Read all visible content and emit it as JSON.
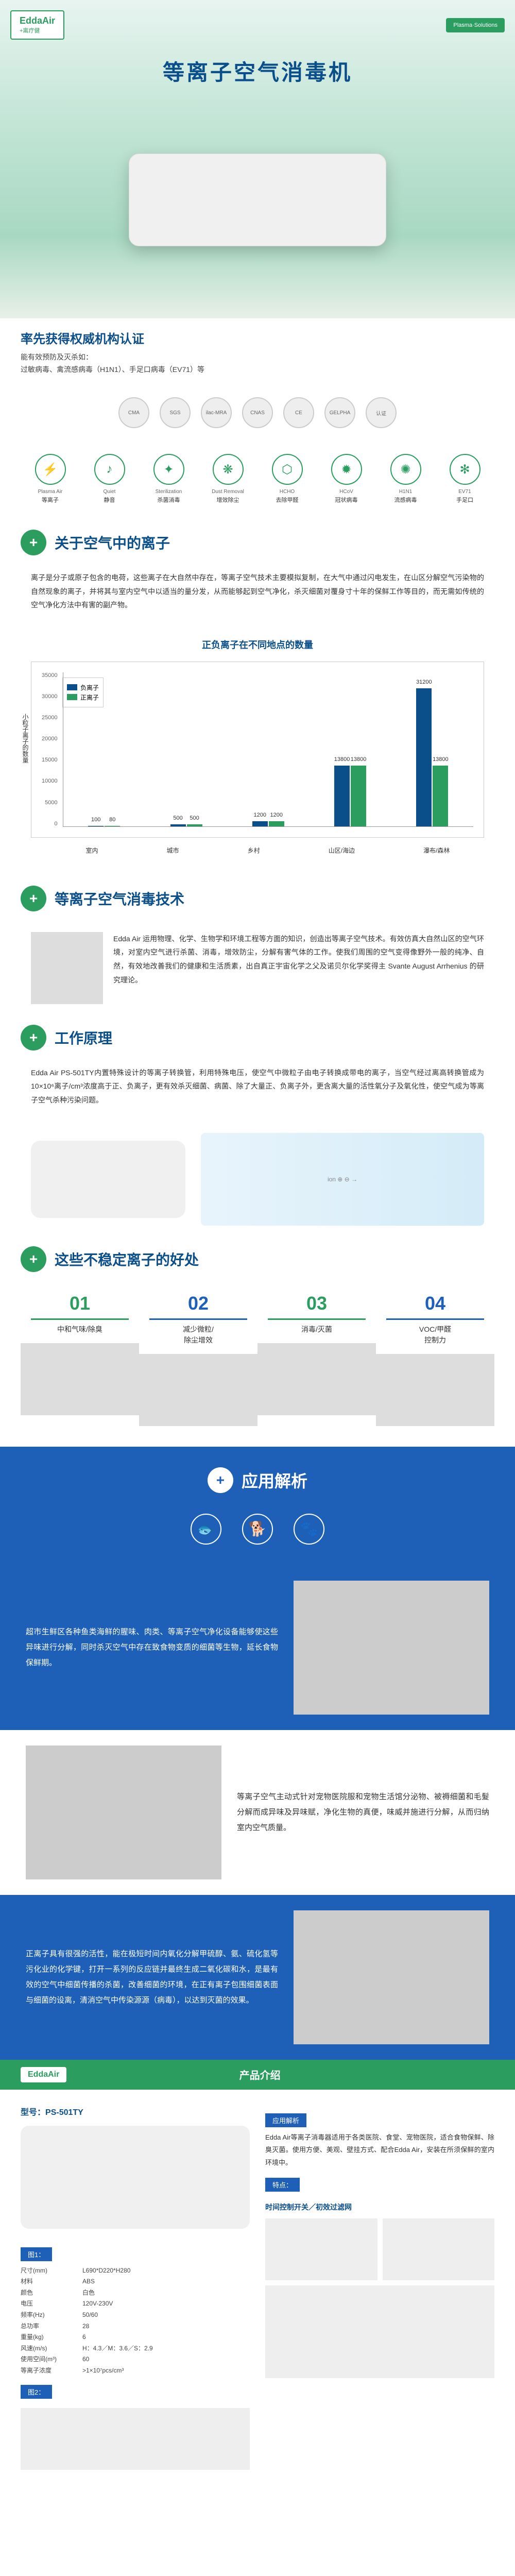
{
  "header": {
    "logo_main": "EddaAir",
    "logo_sub": "+离疗健",
    "cert_badge": "Plasma·Solutions"
  },
  "main_title": "等离子空气消毒机",
  "cert": {
    "title": "率先获得权威机构认证",
    "line1": "能有效预防及灭杀如：",
    "line2": "过敏病毒、禽流感病毒（H1N1）、手足口病毒（EV71）等"
  },
  "badges": [
    "CMA",
    "SGS",
    "ilac-MRA",
    "CNAS",
    "CE",
    "GELPHA",
    "认证"
  ],
  "features": [
    {
      "en": "Plasma Air",
      "cn": "等离子",
      "icon": "⚡"
    },
    {
      "en": "Quiet",
      "cn": "静音",
      "icon": "♪"
    },
    {
      "en": "Sterilization",
      "cn": "杀菌消毒",
      "icon": "✦"
    },
    {
      "en": "Dust Removal",
      "cn": "增效除尘",
      "icon": "❋"
    },
    {
      "en": "HCHO",
      "cn": "去除甲醛",
      "icon": "⬡"
    },
    {
      "en": "HCoV",
      "cn": "冠状病毒",
      "icon": "✹"
    },
    {
      "en": "H1N1",
      "cn": "流感病毒",
      "icon": "✺"
    },
    {
      "en": "EV71",
      "cn": "手足口",
      "icon": "✻"
    }
  ],
  "section1": {
    "title": "关于空气中的离子",
    "text": "离子是分子或原子包含的电荷，这些离子在大自然中存在，等离子空气技术主要模拟复制，在大气中通过闪电发生，在山区分解空气污染物的自然现象的离子，并将其与室内空气中以适当的量分发，从而能够起到空气净化，杀灭细菌对覆身寸十年的保鲜工作等目的，而无需如传统的空气净化方法中有害的副产物。"
  },
  "chart": {
    "title": "正负离子在不同地点的数量",
    "ylabel": "小粒子离子的数量",
    "ylim": [
      0,
      35000
    ],
    "yticks": [
      0,
      5000,
      10000,
      15000,
      20000,
      25000,
      30000,
      35000
    ],
    "categories": [
      "室内",
      "城市",
      "乡村",
      "山区/海边",
      "瀑布/森林"
    ],
    "neg_values": [
      100,
      500,
      1200,
      13800,
      31200
    ],
    "pos_values": [
      80,
      500,
      1200,
      13800,
      13800
    ],
    "neg_color": "#0b4f8a",
    "pos_color": "#2a9d5f",
    "legend": {
      "neg": "负离子",
      "pos": "正离子"
    }
  },
  "section2": {
    "title": "等离子空气消毒技术",
    "text": "Edda Air 运用物理、化学、生物学和环境工程等方面的知识，创造出等离子空气技术。有效仿真大自然山区的空气环境，对室内空气进行杀菌、消毒，增效防尘，分解有害气体的工作。使我们周围的空气变得像野外一般的纯净、自然，有效地改善我们的健康和生活质素，出自真正宇宙化学之父及诺贝尔化学奖得主 Svante August Arrhenius 的研究理论。"
  },
  "section3": {
    "title": "工作原理",
    "text": "Edda Air PS-501TY内置特殊设计的等离子转换管，利用特殊电压，使空气中微粒子由电子转换成带电的离子，当空气经过离高转换管成为10×10⁶离子/cm³浓度高于正、负离子，更有效杀灭细菌、病菌、除了大量正、负离子外，更含离大量的活性氧分子及氧化性，使空气成为等离子空气杀种污染问题。"
  },
  "section4": {
    "title": "这些不稳定离子的好处",
    "items": [
      {
        "num": "01",
        "label": "中和气味/除臭",
        "color": "#2a9d5f"
      },
      {
        "num": "02",
        "label": "减少微粒/\n除尘增效",
        "color": "#1e5fb8"
      },
      {
        "num": "03",
        "label": "消毒/灭菌",
        "color": "#2a9d5f"
      },
      {
        "num": "04",
        "label": "VOC/甲醛\n控制力",
        "color": "#1e5fb8"
      }
    ]
  },
  "app": {
    "title": "应用解析",
    "blocks": [
      {
        "text": "超市生鲜区各种鱼类海鲜的腥味、肉类、等离子空气净化设备能够使这些异味进行分解，同时杀灭空气中存在致食物变质的细菌等生物，延长食物保鲜期。",
        "align": "left"
      },
      {
        "text": "等离子空气主动式针对宠物医院服和宠物生活馆分泌物、被褥细菌和毛髮分解而成异味及异味赋，净化生物的真便，味威并施进行分解，从而归纳室内空气质量。",
        "align": "right"
      },
      {
        "text": "正离子具有很强的活性，能在极短时间内氧化分解甲硫醇、氨、硫化氢等污化业的化学键，打开一系列的反应链并最终生成二氧化碳和水，是最有效的空气中细菌传播的杀菌，改善细菌的环境，在正有离子包围细菌表面与细菌的设离，清消空气中传染源源（病毒），以达到灭菌的效果。",
        "align": "left"
      }
    ]
  },
  "spec": {
    "header_title": "产品介绍",
    "logo": "EddaAir",
    "model_label": "型号：",
    "model": "PS-501TY",
    "desc_title": "应用解析",
    "desc": "Edda Air等离子消毒器适用于各类医院、食堂、宠物医院，适合食物保鲜、除臭灭菌。使用方便、美观、壁挂方式、配合Edda Air，安装在所须保鲜的室内环境中。",
    "feature_title": "特点：",
    "feature": "时间控制开关／初效过滤网",
    "fig1_label": "图1：",
    "fig2_label": "图2：",
    "params": [
      {
        "k": "尺寸(mm)",
        "v": "L690*D220*H280"
      },
      {
        "k": "材料",
        "v": "ABS"
      },
      {
        "k": "颜色",
        "v": "白色"
      },
      {
        "k": "电压",
        "v": "120V-230V"
      },
      {
        "k": "频率(Hz)",
        "v": "50/60"
      },
      {
        "k": "总功率",
        "v": "28"
      },
      {
        "k": "重量(kg)",
        "v": "6"
      },
      {
        "k": "风速(m/s)",
        "v": "H：4.3／M：3.6／S：2.9"
      },
      {
        "k": "使用空间(m³)",
        "v": "60"
      },
      {
        "k": "等离子浓度",
        "v": ">1×10⁷pcs/cm³"
      }
    ]
  }
}
